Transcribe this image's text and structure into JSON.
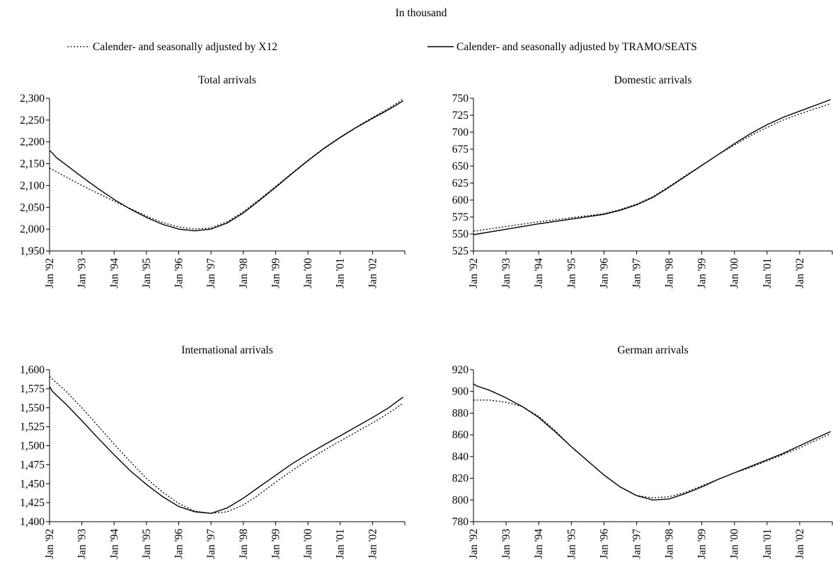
{
  "header": {
    "unit_note": "In thousand"
  },
  "legend": {
    "placement": "top",
    "items": [
      {
        "label": "Calender- and seasonally adjusted by X12",
        "style": "dotted"
      },
      {
        "label": "Calender- and seasonally adjusted by TRAMO/SEATS",
        "style": "solid"
      }
    ]
  },
  "chart_data": [
    {
      "type": "line",
      "title": "Total arrivals",
      "xlabel": "",
      "ylabel": "",
      "categories": [
        "Jan '92",
        "Jan '93",
        "Jan '94",
        "Jan '95",
        "Jan '96",
        "Jan '97",
        "Jan '98",
        "Jan '99",
        "Jan '00",
        "Jan '01",
        "Jan '02"
      ],
      "ylim": [
        1950,
        2300
      ],
      "yticks": [
        1950,
        2000,
        2050,
        2100,
        2150,
        2200,
        2250,
        2300
      ],
      "ytick_labels": [
        "1,950",
        "2,000",
        "2,050",
        "2,100",
        "2,150",
        "2,200",
        "2,250",
        "2,300"
      ],
      "series": [
        {
          "name": "Calender- and seasonally adjusted by X12",
          "style": "dotted",
          "x": [
            1992.0,
            1992.5,
            1993.0,
            1993.5,
            1994.0,
            1994.5,
            1995.0,
            1995.5,
            1996.0,
            1996.5,
            1997.0,
            1997.5,
            1998.0,
            1998.5,
            1999.0,
            1999.5,
            2000.0,
            2000.5,
            2001.0,
            2001.5,
            2002.0,
            2002.5,
            2002.95
          ],
          "y": [
            2140,
            2120,
            2100,
            2082,
            2064,
            2047,
            2030,
            2015,
            2005,
            2000,
            2003,
            2017,
            2040,
            2068,
            2098,
            2128,
            2158,
            2186,
            2211,
            2234,
            2256,
            2277,
            2298
          ]
        },
        {
          "name": "Calender- and seasonally adjusted by TRAMO/SEATS",
          "style": "solid",
          "x": [
            1992.0,
            1992.08,
            1992.2,
            1992.5,
            1993.0,
            1993.5,
            1994.0,
            1994.5,
            1995.0,
            1995.5,
            1996.0,
            1996.5,
            1997.0,
            1997.5,
            1998.0,
            1998.5,
            1999.0,
            1999.5,
            2000.0,
            2000.5,
            2001.0,
            2001.5,
            2002.0,
            2002.5,
            2002.95
          ],
          "y": [
            2180,
            2175,
            2165,
            2148,
            2120,
            2093,
            2068,
            2046,
            2027,
            2011,
            2000,
            1996,
            2000,
            2014,
            2037,
            2066,
            2096,
            2127,
            2157,
            2185,
            2210,
            2233,
            2254,
            2274,
            2294
          ]
        }
      ]
    },
    {
      "type": "line",
      "title": "Domestic arrivals",
      "xlabel": "",
      "ylabel": "",
      "categories": [
        "Jan '92",
        "Jan '93",
        "Jan '94",
        "Jan '95",
        "Jan '96",
        "Jan '97",
        "Jan '98",
        "Jan '99",
        "Jan '00",
        "Jan '01",
        "Jan '02"
      ],
      "ylim": [
        525,
        750
      ],
      "yticks": [
        525,
        550,
        575,
        600,
        625,
        650,
        675,
        700,
        725,
        750
      ],
      "ytick_labels": [
        "525",
        "550",
        "575",
        "600",
        "625",
        "650",
        "675",
        "700",
        "725",
        "750"
      ],
      "series": [
        {
          "name": "Calender- and seasonally adjusted by X12",
          "style": "dotted",
          "x": [
            1992.0,
            1993.0,
            1994.0,
            1995.0,
            1996.0,
            1996.5,
            1997.0,
            1997.5,
            1998.0,
            1998.5,
            1999.0,
            1999.5,
            2000.0,
            2000.5,
            2001.0,
            2001.5,
            2002.0,
            2002.5,
            2002.95
          ],
          "y": [
            554,
            561,
            568,
            574,
            580,
            586,
            594,
            605,
            620,
            636,
            651,
            667,
            681,
            695,
            707,
            718,
            727,
            735,
            742
          ]
        },
        {
          "name": "Calender- and seasonally adjusted by TRAMO/SEATS",
          "style": "solid",
          "x": [
            1992.0,
            1993.0,
            1994.0,
            1995.0,
            1996.0,
            1996.5,
            1997.0,
            1997.5,
            1998.0,
            1998.5,
            1999.0,
            1999.5,
            2000.0,
            2000.5,
            2001.0,
            2001.5,
            2002.0,
            2002.5,
            2002.95
          ],
          "y": [
            549,
            557,
            565,
            572,
            579,
            585,
            593,
            604,
            619,
            635,
            651,
            667,
            683,
            698,
            711,
            722,
            731,
            740,
            748
          ]
        }
      ]
    },
    {
      "type": "line",
      "title": "International arrivals",
      "xlabel": "",
      "ylabel": "",
      "categories": [
        "Jan '92",
        "Jan '93",
        "Jan '94",
        "Jan '95",
        "Jan '96",
        "Jan '97",
        "Jan '98",
        "Jan '99",
        "Jan '00",
        "Jan '01",
        "Jan '02"
      ],
      "ylim": [
        1400,
        1600
      ],
      "yticks": [
        1400,
        1425,
        1450,
        1475,
        1500,
        1525,
        1550,
        1575,
        1600
      ],
      "ytick_labels": [
        "1,400",
        "1,425",
        "1,450",
        "1,475",
        "1,500",
        "1,525",
        "1,550",
        "1,575",
        "1,600"
      ],
      "series": [
        {
          "name": "Calender- and seasonally adjusted by X12",
          "style": "dotted",
          "x": [
            1992.0,
            1992.5,
            1993.0,
            1993.5,
            1994.0,
            1994.5,
            1995.0,
            1995.5,
            1996.0,
            1996.5,
            1997.0,
            1997.5,
            1998.0,
            1998.5,
            1999.0,
            1999.5,
            2000.0,
            2000.5,
            2001.0,
            2001.5,
            2002.0,
            2002.5,
            2002.95
          ],
          "y": [
            1591,
            1572,
            1550,
            1526,
            1502,
            1479,
            1457,
            1439,
            1424,
            1414,
            1411,
            1413,
            1422,
            1436,
            1452,
            1467,
            1481,
            1494,
            1506,
            1518,
            1530,
            1543,
            1556
          ]
        },
        {
          "name": "Calender- and seasonally adjusted by TRAMO/SEATS",
          "style": "solid",
          "x": [
            1992.0,
            1992.08,
            1992.2,
            1992.5,
            1993.0,
            1993.5,
            1994.0,
            1994.5,
            1995.0,
            1995.5,
            1996.0,
            1996.5,
            1997.0,
            1997.5,
            1998.0,
            1998.5,
            1999.0,
            1999.5,
            2000.0,
            2000.5,
            2001.0,
            2001.5,
            2002.0,
            2002.5,
            2002.95
          ],
          "y": [
            1578,
            1572,
            1567,
            1555,
            1533,
            1510,
            1488,
            1467,
            1449,
            1433,
            1420,
            1413,
            1411,
            1418,
            1431,
            1446,
            1461,
            1476,
            1489,
            1501,
            1513,
            1525,
            1537,
            1550,
            1564
          ]
        }
      ]
    },
    {
      "type": "line",
      "title": "German arrivals",
      "xlabel": "",
      "ylabel": "",
      "categories": [
        "Jan '92",
        "Jan '93",
        "Jan '94",
        "Jan '95",
        "Jan '96",
        "Jan '97",
        "Jan '98",
        "Jan '99",
        "Jan '00",
        "Jan '01",
        "Jan '02"
      ],
      "ylim": [
        780,
        920
      ],
      "yticks": [
        780,
        800,
        820,
        840,
        860,
        880,
        900,
        920
      ],
      "ytick_labels": [
        "780",
        "800",
        "820",
        "840",
        "860",
        "880",
        "900",
        "920"
      ],
      "series": [
        {
          "name": "Calender- and seasonally adjusted by X12",
          "style": "dotted",
          "x": [
            1992.0,
            1992.5,
            1993.0,
            1993.5,
            1994.0,
            1994.5,
            1995.0,
            1995.5,
            1996.0,
            1996.5,
            1997.0,
            1997.5,
            1998.0,
            1998.5,
            1999.0,
            1999.5,
            2000.0,
            2000.5,
            2001.0,
            2001.5,
            2002.0,
            2002.5,
            2002.95
          ],
          "y": [
            892,
            892,
            890,
            886,
            877,
            864,
            849,
            836,
            823,
            812,
            804,
            802,
            803,
            807,
            813,
            819,
            825,
            830,
            836,
            842,
            848,
            855,
            861
          ]
        },
        {
          "name": "Calender- and seasonally adjusted by TRAMO/SEATS",
          "style": "solid",
          "x": [
            1992.0,
            1992.1,
            1992.5,
            1993.0,
            1993.5,
            1994.0,
            1994.5,
            1995.0,
            1995.5,
            1996.0,
            1996.5,
            1997.0,
            1997.5,
            1998.0,
            1998.5,
            1999.0,
            1999.5,
            2000.0,
            2000.5,
            2001.0,
            2001.5,
            2002.0,
            2002.5,
            2002.95
          ],
          "y": [
            907,
            905,
            901,
            894,
            886,
            876,
            863,
            849,
            836,
            823,
            812,
            804,
            800,
            801,
            806,
            812,
            819,
            825,
            831,
            837,
            843,
            850,
            857,
            863
          ]
        }
      ]
    }
  ]
}
